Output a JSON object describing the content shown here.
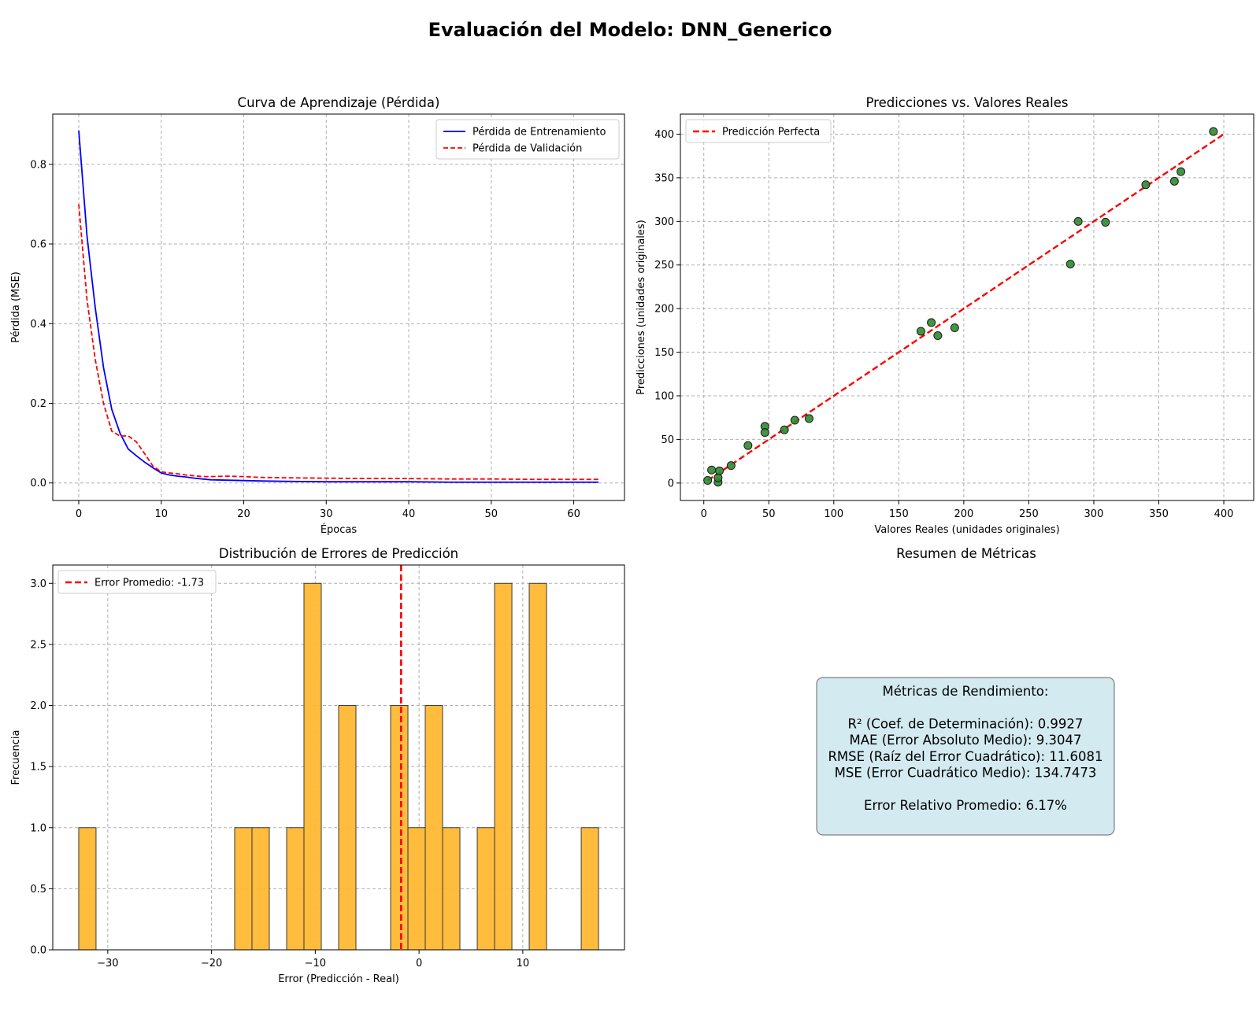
{
  "figure_title": "Evaluación del Modelo: DNN_Generico",
  "chart_data": [
    {
      "type": "line",
      "title": "Curva de Aprendizaje (Pérdida)",
      "xlabel": "Épocas",
      "ylabel": "Pérdida (MSE)",
      "xlim": [
        -3.15,
        66.15
      ],
      "ylim": [
        -0.044,
        0.926
      ],
      "xticks": [
        0,
        10,
        20,
        30,
        40,
        50,
        60
      ],
      "yticks": [
        0.0,
        0.2,
        0.4,
        0.6,
        0.8
      ],
      "ytick_labels": [
        "0.0",
        "0.2",
        "0.4",
        "0.6",
        "0.8"
      ],
      "grid": true,
      "legend_position": "upper right",
      "series": [
        {
          "name": "Pérdida de Entrenamiento",
          "color": "#0000ff",
          "style": "solid",
          "x": [
            0,
            1,
            2,
            3,
            4,
            5,
            6,
            7,
            8,
            9,
            10,
            11,
            12,
            13,
            14,
            15,
            16,
            18,
            20,
            22,
            25,
            30,
            35,
            40,
            45,
            50,
            55,
            60,
            63
          ],
          "y": [
            0.885,
            0.62,
            0.44,
            0.29,
            0.185,
            0.125,
            0.085,
            0.068,
            0.052,
            0.038,
            0.025,
            0.02,
            0.017,
            0.015,
            0.012,
            0.01,
            0.008,
            0.007,
            0.006,
            0.005,
            0.004,
            0.003,
            0.003,
            0.003,
            0.002,
            0.002,
            0.002,
            0.002,
            0.002
          ]
        },
        {
          "name": "Pérdida de Validación",
          "color": "#ff0000",
          "style": "dashed",
          "x": [
            0,
            1,
            2,
            3,
            4,
            5,
            6,
            7,
            8,
            9,
            10,
            11,
            12,
            13,
            14,
            15,
            16,
            18,
            20,
            22,
            25,
            30,
            35,
            40,
            45,
            50,
            55,
            60,
            63
          ],
          "y": [
            0.7,
            0.46,
            0.31,
            0.2,
            0.13,
            0.118,
            0.118,
            0.103,
            0.073,
            0.042,
            0.028,
            0.025,
            0.023,
            0.02,
            0.018,
            0.016,
            0.016,
            0.017,
            0.016,
            0.014,
            0.013,
            0.012,
            0.011,
            0.011,
            0.01,
            0.01,
            0.009,
            0.009,
            0.009
          ]
        }
      ]
    },
    {
      "type": "scatter",
      "title": "Predicciones vs. Valores Reales",
      "xlabel": "Valores Reales (unidades originales)",
      "ylabel": "Predicciones (unidades originales)",
      "xlim": [
        -18.0,
        423.0
      ],
      "ylim": [
        -20.0,
        423.0
      ],
      "xticks": [
        0,
        50,
        100,
        150,
        200,
        250,
        300,
        350,
        400
      ],
      "yticks": [
        0,
        50,
        100,
        150,
        200,
        250,
        300,
        350,
        400
      ],
      "grid": true,
      "legend_position": "upper left",
      "reference_line": {
        "name": "Predicción Perfecta",
        "color": "#ff0000",
        "style": "dashed",
        "x": [
          3,
          401
        ],
        "y": [
          3,
          401
        ]
      },
      "point_color": "#2e8b2e",
      "points": [
        {
          "x": 3,
          "y": 3
        },
        {
          "x": 6,
          "y": 15
        },
        {
          "x": 11,
          "y": 1
        },
        {
          "x": 11,
          "y": 6
        },
        {
          "x": 12,
          "y": 14
        },
        {
          "x": 21,
          "y": 20
        },
        {
          "x": 34,
          "y": 43
        },
        {
          "x": 47,
          "y": 65
        },
        {
          "x": 47,
          "y": 58
        },
        {
          "x": 62,
          "y": 61
        },
        {
          "x": 70,
          "y": 72
        },
        {
          "x": 81,
          "y": 74
        },
        {
          "x": 167,
          "y": 174
        },
        {
          "x": 175,
          "y": 184
        },
        {
          "x": 180,
          "y": 169
        },
        {
          "x": 193,
          "y": 178
        },
        {
          "x": 282,
          "y": 251
        },
        {
          "x": 288,
          "y": 300
        },
        {
          "x": 309,
          "y": 299
        },
        {
          "x": 340,
          "y": 342
        },
        {
          "x": 362,
          "y": 346
        },
        {
          "x": 367,
          "y": 357
        },
        {
          "x": 392,
          "y": 403
        }
      ]
    },
    {
      "type": "bar",
      "subtype": "histogram",
      "title": "Distribución de Errores de Predicción",
      "xlabel": "Error (Predicción - Real)",
      "ylabel": "Frecuencia",
      "xlim": [
        -35.3,
        19.8
      ],
      "ylim": [
        0,
        3.15
      ],
      "xticks": [
        -30,
        -20,
        -10,
        0,
        10
      ],
      "xtick_labels": [
        "−30",
        "−20",
        "−10",
        "0",
        "10"
      ],
      "yticks": [
        0.0,
        0.5,
        1.0,
        1.5,
        2.0,
        2.5,
        3.0
      ],
      "ytick_labels": [
        "0.0",
        "0.5",
        "1.0",
        "1.5",
        "2.0",
        "2.5",
        "3.0"
      ],
      "grid": true,
      "legend_position": "upper left",
      "bar_color": "#ffb833",
      "bin_width": 1.67,
      "bins": [
        {
          "left": -32.8,
          "count": 1
        },
        {
          "left": -17.77,
          "count": 1
        },
        {
          "left": -16.1,
          "count": 1
        },
        {
          "left": -12.76,
          "count": 1
        },
        {
          "left": -11.09,
          "count": 3
        },
        {
          "left": -7.75,
          "count": 2
        },
        {
          "left": -2.74,
          "count": 2
        },
        {
          "left": -1.07,
          "count": 1
        },
        {
          "left": 0.6,
          "count": 2
        },
        {
          "left": 2.27,
          "count": 1
        },
        {
          "left": 5.61,
          "count": 1
        },
        {
          "left": 7.28,
          "count": 3
        },
        {
          "left": 10.62,
          "count": 3
        },
        {
          "left": 15.63,
          "count": 1
        }
      ],
      "mean_line": {
        "name": "Error Promedio: -1.73",
        "value": -1.73,
        "color": "#ff0000",
        "style": "dashed"
      }
    }
  ],
  "metrics_panel": {
    "title": "Resumen de Métricas",
    "lines": [
      "Métricas de Rendimiento:",
      "",
      "R² (Coef. de Determinación): 0.9927",
      "MAE (Error Absoluto Medio): 9.3047",
      "RMSE (Raíz del Error Cuadrático): 11.6081",
      "MSE (Error Cuadrático Medio): 134.7473",
      "",
      "Error Relativo Promedio: 6.17%"
    ]
  }
}
